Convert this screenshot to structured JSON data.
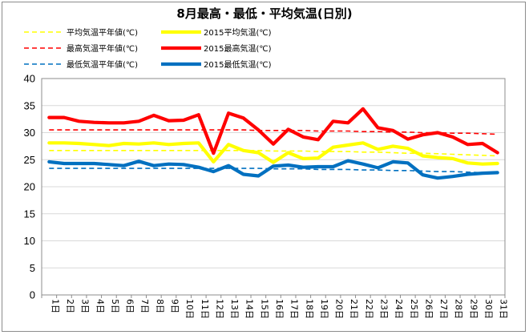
{
  "chart_data": {
    "type": "line",
    "title": "8月最高・最低・平均気温(日別)",
    "xlabel": "",
    "ylabel": "",
    "ylim": [
      0,
      40
    ],
    "y_ticks": [
      0,
      5,
      10,
      15,
      20,
      25,
      30,
      35,
      40
    ],
    "grid": "horizontal",
    "legend_position": "top-left",
    "categories": [
      "1日",
      "2日",
      "3日",
      "4日",
      "5日",
      "6日",
      "7日",
      "8日",
      "9日",
      "10日",
      "11日",
      "12日",
      "13日",
      "14日",
      "15日",
      "16日",
      "17日",
      "18日",
      "19日",
      "20日",
      "21日",
      "22日",
      "23日",
      "24日",
      "25日",
      "26日",
      "27日",
      "28日",
      "29日",
      "30日",
      "31日"
    ],
    "series": [
      {
        "name": "平均気温平年値(℃)",
        "color": "#ffff00",
        "style": "dashed",
        "values": [
          26.7,
          26.7,
          26.7,
          26.7,
          26.7,
          26.7,
          26.7,
          26.7,
          26.7,
          26.7,
          26.7,
          26.7,
          26.7,
          26.7,
          26.7,
          26.6,
          26.6,
          26.6,
          26.5,
          26.5,
          26.5,
          26.4,
          26.4,
          26.3,
          26.2,
          26.2,
          26.1,
          26.0,
          25.9,
          25.8,
          25.7
        ]
      },
      {
        "name": "2015平均気温(℃)",
        "color": "#ffff00",
        "style": "solid",
        "values": [
          28.1,
          28.1,
          28.0,
          27.8,
          27.6,
          28.0,
          27.9,
          28.1,
          27.8,
          28.0,
          28.1,
          24.6,
          27.8,
          26.7,
          26.3,
          24.5,
          26.3,
          25.2,
          25.3,
          27.3,
          27.7,
          28.1,
          26.9,
          27.5,
          27.1,
          25.7,
          25.4,
          25.2,
          24.4,
          24.2,
          24.3
        ]
      },
      {
        "name": "最高気温平年値(℃)",
        "color": "#ff0000",
        "style": "dashed",
        "values": [
          30.5,
          30.5,
          30.5,
          30.5,
          30.5,
          30.5,
          30.5,
          30.5,
          30.5,
          30.5,
          30.5,
          30.5,
          30.5,
          30.5,
          30.4,
          30.4,
          30.4,
          30.4,
          30.3,
          30.3,
          30.3,
          30.2,
          30.2,
          30.1,
          30.1,
          30.0,
          30.0,
          29.9,
          29.9,
          29.8,
          29.7
        ]
      },
      {
        "name": "2015最高気温(℃)",
        "color": "#ff0000",
        "style": "solid",
        "values": [
          32.8,
          32.8,
          32.1,
          31.9,
          31.8,
          31.8,
          32.1,
          33.2,
          32.2,
          32.3,
          33.3,
          26.2,
          33.6,
          32.7,
          30.5,
          27.9,
          30.6,
          29.2,
          28.7,
          32.1,
          31.8,
          34.4,
          30.9,
          30.4,
          28.8,
          29.6,
          30.0,
          29.2,
          27.8,
          28.0,
          26.3
        ]
      },
      {
        "name": "最低気温平年値(℃)",
        "color": "#0070c0",
        "style": "dashed",
        "values": [
          23.4,
          23.4,
          23.4,
          23.4,
          23.4,
          23.4,
          23.4,
          23.4,
          23.4,
          23.4,
          23.4,
          23.4,
          23.4,
          23.4,
          23.4,
          23.3,
          23.3,
          23.3,
          23.2,
          23.2,
          23.2,
          23.1,
          23.1,
          23.0,
          23.0,
          22.9,
          22.8,
          22.8,
          22.7,
          22.6,
          22.5
        ]
      },
      {
        "name": "2015最低気温(℃)",
        "color": "#0070c0",
        "style": "solid",
        "values": [
          24.6,
          24.3,
          24.3,
          24.3,
          24.1,
          23.9,
          24.7,
          23.9,
          24.2,
          24.1,
          23.6,
          22.8,
          23.9,
          22.3,
          22.0,
          23.8,
          24.0,
          23.6,
          23.7,
          23.7,
          24.8,
          24.2,
          23.5,
          24.6,
          24.4,
          22.2,
          21.6,
          21.9,
          22.3,
          22.5,
          22.6
        ]
      }
    ]
  }
}
